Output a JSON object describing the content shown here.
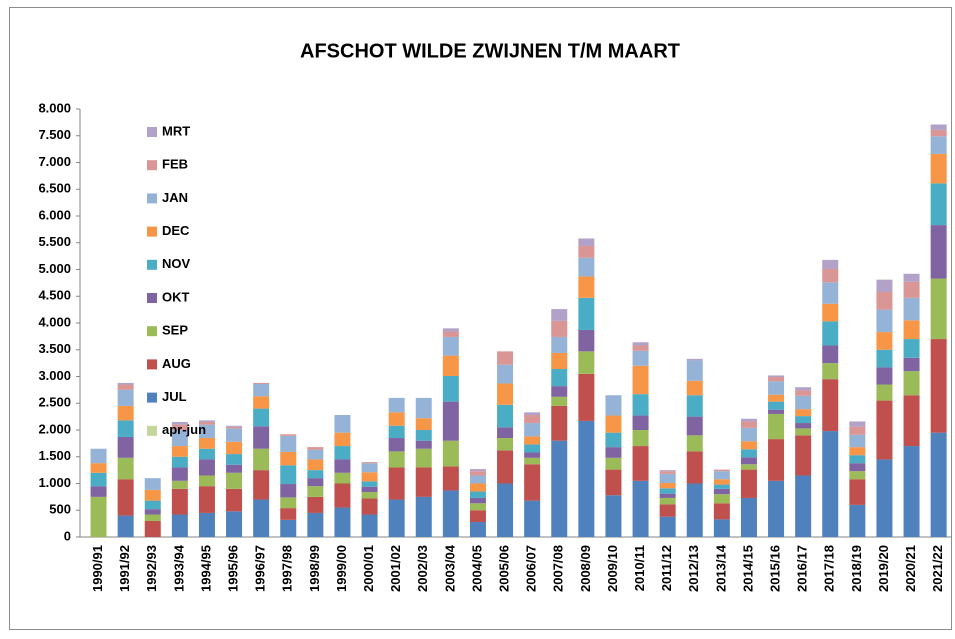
{
  "chart_data": {
    "type": "bar",
    "stacked": true,
    "title": "AFSCHOT WILDE ZWIJNEN T/M MAART",
    "categories": [
      "1990/91",
      "1991/92",
      "1992/93",
      "1993/94",
      "1994/95",
      "1995/96",
      "1996/97",
      "1997/98",
      "1998/99",
      "1999/00",
      "2000/01",
      "2001/02",
      "2002/03",
      "2003/04",
      "2004/05",
      "2005/06",
      "2006/07",
      "2007/08",
      "2008/09",
      "2009/10",
      "2010/11",
      "2011/12",
      "2012/13",
      "2013/14",
      "2014/15",
      "2015/16",
      "2016/17",
      "2017/18",
      "2018/19",
      "2019/20",
      "2020/21",
      "2021/22"
    ],
    "series": [
      {
        "name": "apr-jun",
        "color": "#c3d69b",
        "values": [
          0,
          0,
          0,
          0,
          0,
          0,
          0,
          0,
          0,
          0,
          0,
          0,
          0,
          0,
          0,
          0,
          0,
          0,
          0,
          0,
          0,
          0,
          0,
          0,
          0,
          0,
          0,
          0,
          0,
          0,
          0,
          0
        ]
      },
      {
        "name": "JUL",
        "color": "#4f81bd",
        "values": [
          0,
          400,
          0,
          420,
          450,
          480,
          700,
          320,
          450,
          550,
          420,
          700,
          750,
          870,
          280,
          1000,
          680,
          1800,
          2170,
          780,
          1050,
          380,
          1000,
          330,
          730,
          1050,
          1150,
          1980,
          600,
          1450,
          1700,
          1950
        ]
      },
      {
        "name": "AUG",
        "color": "#c0504d",
        "values": [
          0,
          680,
          300,
          480,
          500,
          420,
          550,
          220,
          300,
          450,
          300,
          600,
          550,
          450,
          220,
          620,
          680,
          650,
          880,
          480,
          650,
          230,
          600,
          300,
          530,
          780,
          750,
          970,
          480,
          1100,
          950,
          1750
        ]
      },
      {
        "name": "SEP",
        "color": "#9bbb59",
        "values": [
          750,
          400,
          120,
          150,
          200,
          300,
          400,
          200,
          200,
          200,
          120,
          300,
          350,
          480,
          130,
          230,
          120,
          170,
          420,
          220,
          300,
          120,
          300,
          170,
          100,
          470,
          130,
          300,
          150,
          300,
          450,
          1130
        ]
      },
      {
        "name": "OKT",
        "color": "#8064a2",
        "values": [
          200,
          390,
          100,
          250,
          300,
          150,
          420,
          250,
          150,
          250,
          100,
          250,
          150,
          730,
          100,
          200,
          100,
          200,
          400,
          200,
          270,
          80,
          350,
          100,
          130,
          80,
          100,
          330,
          150,
          320,
          250,
          1000
        ]
      },
      {
        "name": "NOV",
        "color": "#4bacc6",
        "values": [
          250,
          310,
          160,
          200,
          200,
          200,
          330,
          350,
          150,
          250,
          100,
          230,
          200,
          480,
          120,
          420,
          150,
          320,
          600,
          270,
          400,
          100,
          400,
          80,
          150,
          150,
          130,
          450,
          150,
          330,
          350,
          780
        ]
      },
      {
        "name": "DEC",
        "color": "#f79646",
        "values": [
          180,
          270,
          200,
          200,
          200,
          230,
          230,
          250,
          200,
          250,
          170,
          250,
          220,
          380,
          150,
          400,
          150,
          300,
          400,
          320,
          530,
          100,
          270,
          100,
          150,
          130,
          130,
          330,
          150,
          330,
          350,
          550
        ]
      },
      {
        "name": "JAN",
        "color": "#95b3d7",
        "values": [
          270,
          300,
          220,
          300,
          250,
          250,
          230,
          300,
          180,
          330,
          170,
          270,
          380,
          350,
          150,
          350,
          250,
          300,
          350,
          380,
          280,
          170,
          380,
          150,
          250,
          250,
          250,
          400,
          230,
          420,
          420,
          330
        ]
      },
      {
        "name": "FEB",
        "color": "#d99694",
        "values": [
          0,
          100,
          0,
          100,
          50,
          30,
          20,
          30,
          50,
          0,
          20,
          0,
          0,
          100,
          80,
          250,
          150,
          300,
          220,
          0,
          100,
          50,
          0,
          30,
          120,
          80,
          100,
          250,
          150,
          330,
          300,
          120
        ]
      },
      {
        "name": "MRT",
        "color": "#b3a2c7",
        "values": [
          0,
          30,
          0,
          50,
          30,
          20,
          0,
          0,
          0,
          0,
          0,
          0,
          0,
          60,
          40,
          0,
          50,
          220,
          140,
          0,
          60,
          20,
          30,
          0,
          50,
          30,
          60,
          170,
          100,
          230,
          150,
          100
        ]
      }
    ],
    "ylim": [
      0,
      8000
    ],
    "yticks": [
      0,
      500,
      {
        "value": 1000,
        "label": "1.000"
      },
      {
        "value": 1500,
        "label": "1.500"
      },
      {
        "value": 2000,
        "label": "2.000"
      },
      {
        "value": 2500,
        "label": "2.500"
      },
      {
        "value": 3000,
        "label": "3.000"
      },
      {
        "value": 3500,
        "label": "3.500"
      },
      {
        "value": 4000,
        "label": "4.000"
      },
      {
        "value": 4500,
        "label": "4.500"
      },
      {
        "value": 5000,
        "label": "5.000"
      },
      {
        "value": 5500,
        "label": "5.500"
      },
      {
        "value": 6000,
        "label": "6.000"
      },
      {
        "value": 6500,
        "label": "6.500"
      },
      {
        "value": 7000,
        "label": "7.000"
      },
      {
        "value": 7500,
        "label": "7.500"
      },
      {
        "value": 8000,
        "label": "8.000"
      }
    ],
    "grid": false,
    "legend": "top-left"
  }
}
